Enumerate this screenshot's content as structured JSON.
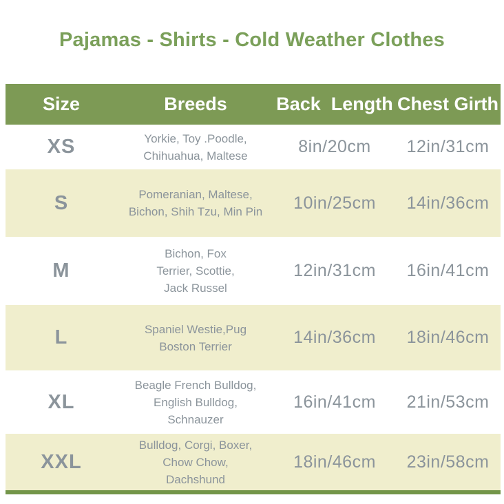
{
  "page": {
    "title": "Pajamas - Shirts - Cold Weather Clothes"
  },
  "colors": {
    "title_green": "#7ba05a",
    "header_green": "#7d9a55",
    "row_cream": "#f0eecd",
    "row_white": "#ffffff",
    "text_gray": "#8b949b",
    "bottom_bar_green": "#739549"
  },
  "table": {
    "headers": [
      "Size",
      "Breeds",
      "Back  Length",
      "Chest Girth"
    ],
    "rows": [
      {
        "size": "XS",
        "breeds": "Yorkie, Toy .Poodle,\nChihuahua, Maltese",
        "back_length": "8in/20cm",
        "chest_girth": "12in/31cm"
      },
      {
        "size": "S",
        "breeds": "Pomeranian, Maltese,\nBichon, Shih Tzu, Min Pin",
        "back_length": "10in/25cm",
        "chest_girth": "14in/36cm"
      },
      {
        "size": "M",
        "breeds": "Bichon, Fox\nTerrier, Scottie,\nJack Russel",
        "back_length": "12in/31cm",
        "chest_girth": "16in/41cm"
      },
      {
        "size": "L",
        "breeds": "Spaniel Westie,Pug\nBoston Terrier",
        "back_length": "14in/36cm",
        "chest_girth": "18in/46cm"
      },
      {
        "size": "XL",
        "breeds": "Beagle French Bulldog,\nEnglish Bulldog,\nSchnauzer",
        "back_length": "16in/41cm",
        "chest_girth": "21in/53cm"
      },
      {
        "size": "XXL",
        "breeds": "Bulldog, Corgi, Boxer,\nChow Chow,\nDachshund",
        "back_length": "18in/46cm",
        "chest_girth": "23in/58cm"
      }
    ]
  }
}
